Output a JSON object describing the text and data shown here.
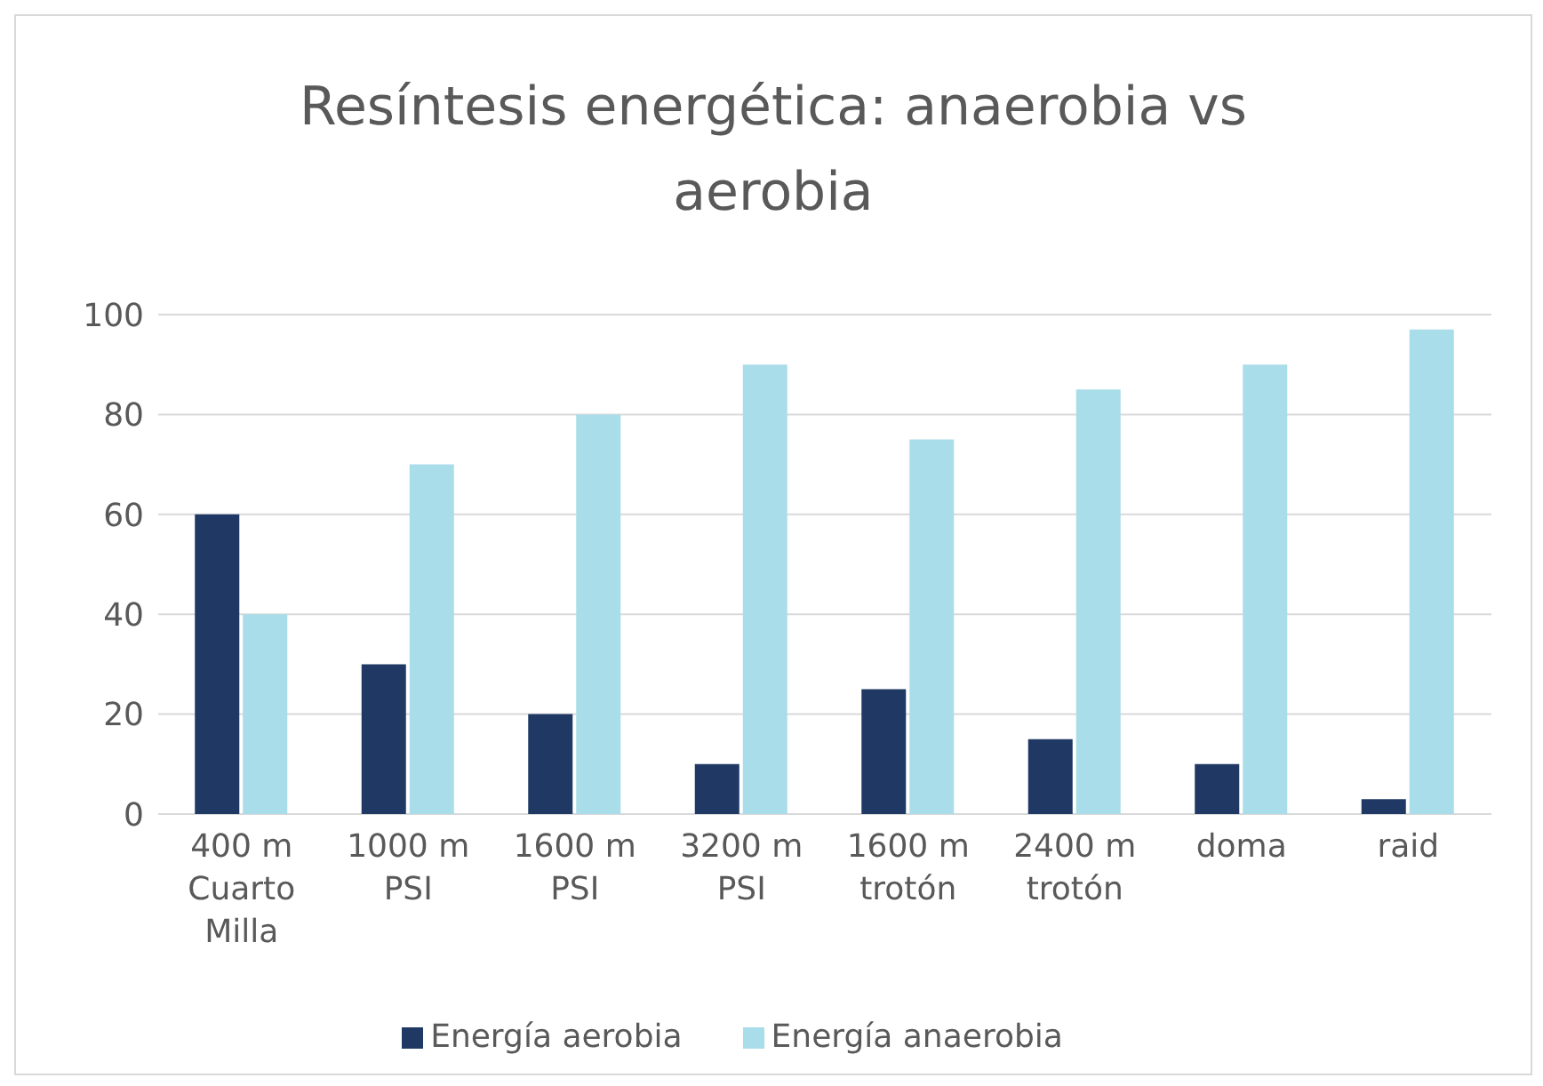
{
  "chart_data": {
    "type": "bar",
    "title": "Resíntesis energética: anaerobia vs aerobia",
    "categories": [
      "400 m Cuarto Milla",
      "1000 m PSI",
      "1600 m PSI",
      "3200 m PSI",
      "1600 m trotón",
      "2400 m trotón",
      "doma",
      "raid"
    ],
    "series": [
      {
        "name": "Energía aerobia",
        "color": "#1f3864",
        "values": [
          60,
          30,
          20,
          10,
          25,
          15,
          10,
          3
        ]
      },
      {
        "name": "Energía anaerobia",
        "color": "#a9dde9",
        "values": [
          40,
          70,
          80,
          90,
          75,
          85,
          90,
          97
        ]
      }
    ],
    "ylim": [
      0,
      100
    ],
    "yticks": [
      0,
      20,
      40,
      60,
      80,
      100
    ],
    "grid": "y",
    "legend": "bottom"
  }
}
